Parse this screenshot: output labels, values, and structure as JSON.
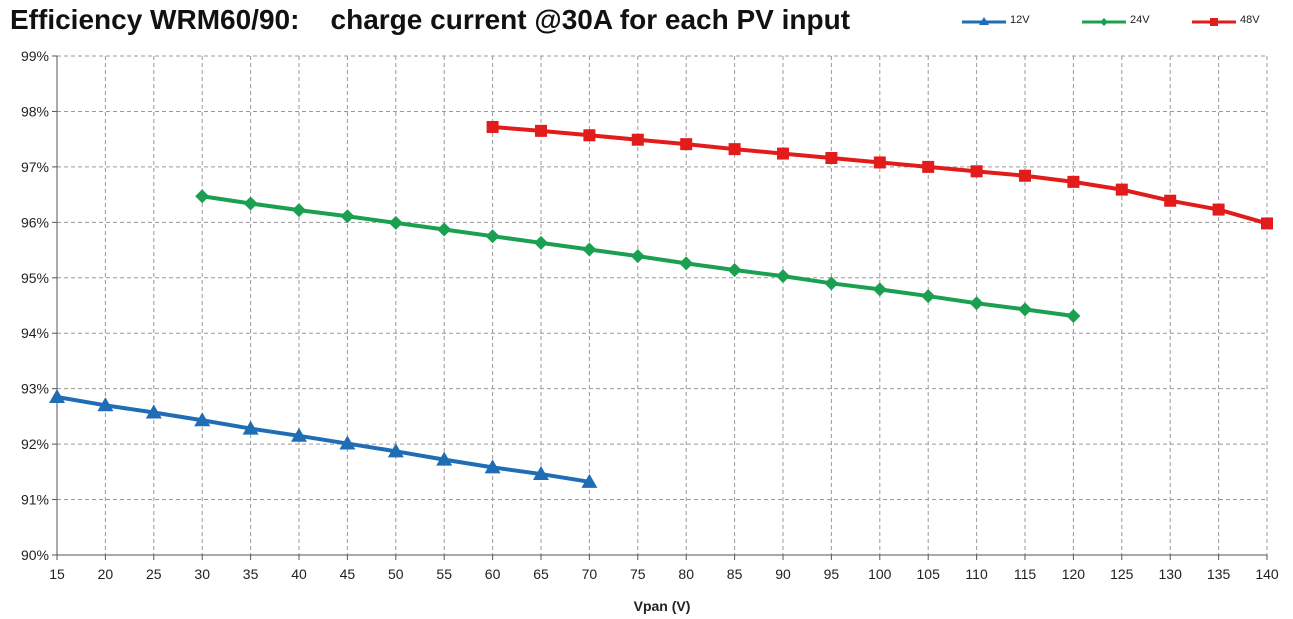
{
  "chart_data": {
    "type": "line",
    "title": "Efficiency WRM60/90:    charge current @30A for each PV input",
    "xlabel": "Vpan (V)",
    "ylabel": "",
    "x_ticks": [
      15,
      20,
      25,
      30,
      35,
      40,
      45,
      50,
      55,
      60,
      65,
      70,
      75,
      80,
      85,
      90,
      95,
      100,
      105,
      110,
      115,
      120,
      125,
      130,
      135,
      140
    ],
    "y_ticks": [
      "90%",
      "91%",
      "92%",
      "93%",
      "94%",
      "95%",
      "96%",
      "97%",
      "98%",
      "99%"
    ],
    "xlim": [
      15,
      140
    ],
    "ylim": [
      90,
      99
    ],
    "grid": true,
    "legend_position": "top-right",
    "series": [
      {
        "name": "12V",
        "color": "#1f6db5",
        "marker": "triangle",
        "x": [
          15,
          20,
          25,
          30,
          35,
          40,
          45,
          50,
          55,
          60,
          65,
          70
        ],
        "y": [
          92.85,
          92.7,
          92.57,
          92.43,
          92.28,
          92.15,
          92.01,
          91.87,
          91.72,
          91.58,
          91.46,
          91.32
        ]
      },
      {
        "name": "24V",
        "color": "#1aa050",
        "marker": "diamond",
        "x": [
          30,
          35,
          40,
          45,
          50,
          55,
          60,
          65,
          70,
          75,
          80,
          85,
          90,
          95,
          100,
          105,
          110,
          115,
          120
        ],
        "y": [
          96.47,
          96.34,
          96.22,
          96.11,
          95.99,
          95.87,
          95.75,
          95.63,
          95.51,
          95.39,
          95.26,
          95.14,
          95.03,
          94.9,
          94.79,
          94.67,
          94.54,
          94.43,
          94.31
        ]
      },
      {
        "name": "48V",
        "color": "#e21b1b",
        "marker": "square",
        "x": [
          60,
          65,
          70,
          75,
          80,
          85,
          90,
          95,
          100,
          105,
          110,
          115,
          120,
          125,
          130,
          135,
          140
        ],
        "y": [
          97.72,
          97.65,
          97.57,
          97.49,
          97.41,
          97.32,
          97.24,
          97.16,
          97.08,
          97.0,
          96.92,
          96.84,
          96.73,
          96.59,
          96.39,
          96.23,
          95.98
        ]
      }
    ]
  }
}
